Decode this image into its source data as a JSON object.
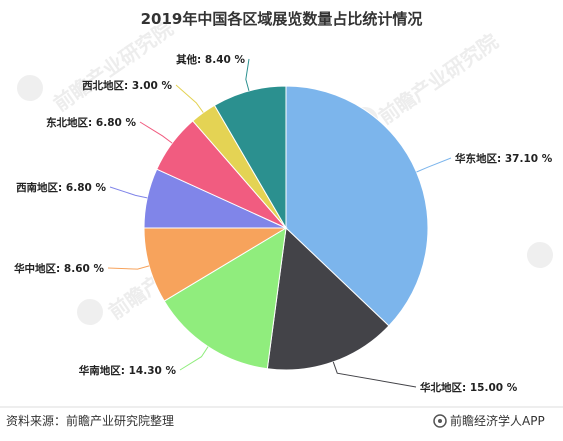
{
  "chart_data": {
    "type": "pie",
    "title": "2019年中国各区域展览数量占比统计情况",
    "slices": [
      {
        "name": "华东地区",
        "value": 37.1,
        "label": "华东地区: 37.10 %",
        "color": "#7cb5ec"
      },
      {
        "name": "华北地区",
        "value": 15.0,
        "label": "华北地区: 15.00 %",
        "color": "#434348"
      },
      {
        "name": "华南地区",
        "value": 14.3,
        "label": "华南地区: 14.30 %",
        "color": "#90ed7d"
      },
      {
        "name": "华中地区",
        "value": 8.6,
        "label": "华中地区: 8.60 %",
        "color": "#f7a35c"
      },
      {
        "name": "西南地区",
        "value": 6.8,
        "label": "西南地区: 6.80 %",
        "color": "#8085e9"
      },
      {
        "name": "东北地区",
        "value": 6.8,
        "label": "东北地区: 6.80 %",
        "color": "#f15c80"
      },
      {
        "name": "西北地区",
        "value": 3.0,
        "label": "西北地区: 3.00 %",
        "color": "#e4d354"
      },
      {
        "name": "其他",
        "value": 8.4,
        "label": "其他: 8.40 %",
        "color": "#2b908f"
      }
    ]
  },
  "footer": {
    "source": "资料来源：前瞻产业研究院整理",
    "brand": "前瞻经济学人APP"
  },
  "watermark": {
    "text": "前瞻产业研究院"
  }
}
